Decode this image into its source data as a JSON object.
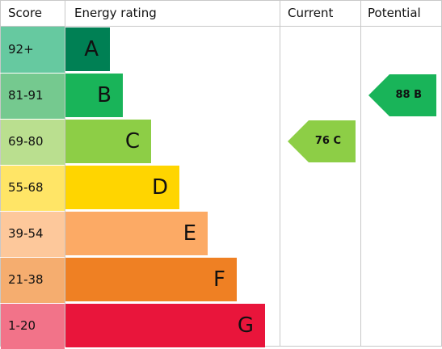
{
  "headers": {
    "score": "Score",
    "rating": "Energy rating",
    "current": "Current",
    "potential": "Potential"
  },
  "bands": [
    {
      "range": "92+",
      "letter": "A",
      "color": "#008054",
      "row_color": "#66c9a0"
    },
    {
      "range": "81-91",
      "letter": "B",
      "color": "#19b459",
      "row_color": "#75c98f"
    },
    {
      "range": "69-80",
      "letter": "C",
      "color": "#8dce46",
      "row_color": "#badf8f"
    },
    {
      "range": "55-68",
      "letter": "D",
      "color": "#ffd500",
      "row_color": "#ffe566"
    },
    {
      "range": "39-54",
      "letter": "E",
      "color": "#fcaa65",
      "row_color": "#fdc89b"
    },
    {
      "range": "21-38",
      "letter": "F",
      "color": "#ef8023",
      "row_color": "#f5ad6f"
    },
    {
      "range": "1-20",
      "letter": "G",
      "color": "#e9153b",
      "row_color": "#f27389"
    }
  ],
  "current": {
    "label": "76 C",
    "band": "C",
    "color": "#8dce46"
  },
  "potential": {
    "label": "88 B",
    "band": "B",
    "color": "#19b459"
  }
}
